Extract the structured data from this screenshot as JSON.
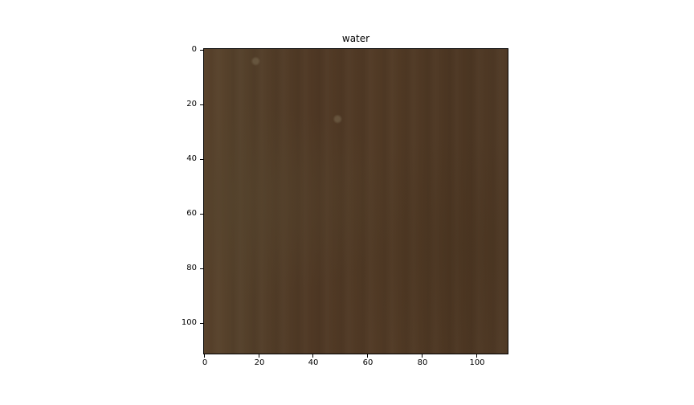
{
  "title": "water",
  "x_ticks": [
    "0",
    "20",
    "40",
    "60",
    "80",
    "100"
  ],
  "y_ticks": [
    "0",
    "20",
    "40",
    "60",
    "80",
    "100"
  ],
  "image": {
    "subject": "water-texture",
    "dominant_color": "#4f3925",
    "x_range": [
      0,
      112
    ],
    "y_range": [
      0,
      112
    ]
  }
}
